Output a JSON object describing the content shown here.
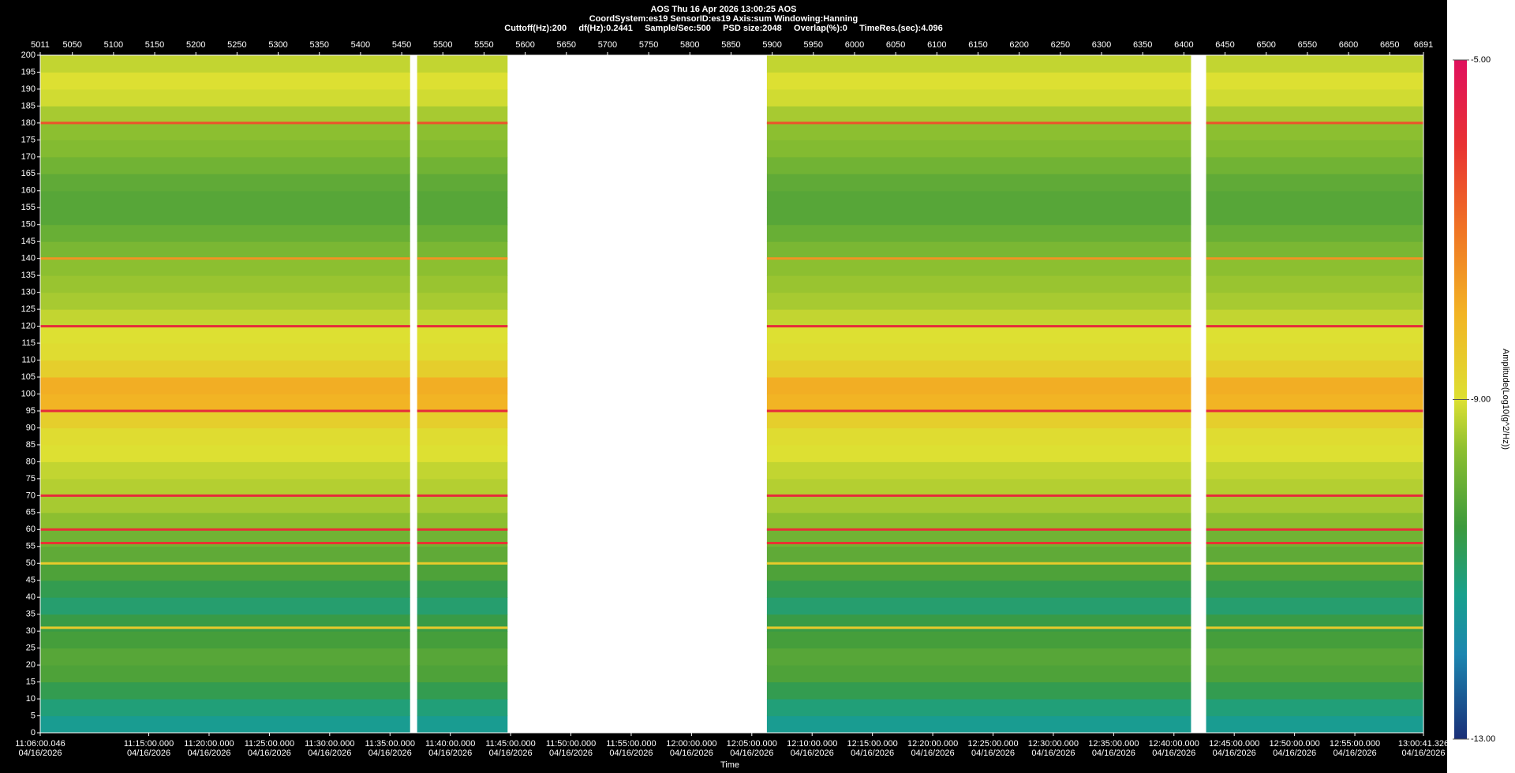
{
  "chart_data": {
    "type": "spectrogram",
    "title": "AOS  Thu 16 Apr 2026 13:00:25  AOS",
    "subtitle": "CoordSystem:es19   SensorID:es19   Axis:sum   Windowing:Hanning",
    "parameters": "Cuttoff(Hz):200     df(Hz):0.2441     Sample/Sec:500     PSD size:2048     Overlap(%):0     TimeRes.(sec):4.096",
    "x_label": "Time",
    "colorbar_label": "Amplitude(Log10(g^2/Hz))",
    "xlim": [
      "11:06:00.046",
      "13:00:41.326"
    ],
    "xticks": [
      {
        "time": "11:06:00.046",
        "date": "04/16/2026"
      },
      {
        "time": "11:15:00.000",
        "date": "04/16/2026"
      },
      {
        "time": "11:20:00.000",
        "date": "04/16/2026"
      },
      {
        "time": "11:25:00.000",
        "date": "04/16/2026"
      },
      {
        "time": "11:30:00.000",
        "date": "04/16/2026"
      },
      {
        "time": "11:35:00.000",
        "date": "04/16/2026"
      },
      {
        "time": "11:40:00.000",
        "date": "04/16/2026"
      },
      {
        "time": "11:45:00.000",
        "date": "04/16/2026"
      },
      {
        "time": "11:50:00.000",
        "date": "04/16/2026"
      },
      {
        "time": "11:55:00.000",
        "date": "04/16/2026"
      },
      {
        "time": "12:00:00.000",
        "date": "04/16/2026"
      },
      {
        "time": "12:05:00.000",
        "date": "04/16/2026"
      },
      {
        "time": "12:10:00.000",
        "date": "04/16/2026"
      },
      {
        "time": "12:15:00.000",
        "date": "04/16/2026"
      },
      {
        "time": "12:20:00.000",
        "date": "04/16/2026"
      },
      {
        "time": "12:25:00.000",
        "date": "04/16/2026"
      },
      {
        "time": "12:30:00.000",
        "date": "04/16/2026"
      },
      {
        "time": "12:35:00.000",
        "date": "04/16/2026"
      },
      {
        "time": "12:40:00.000",
        "date": "04/16/2026"
      },
      {
        "time": "12:45:00.000",
        "date": "04/16/2026"
      },
      {
        "time": "12:50:00.000",
        "date": "04/16/2026"
      },
      {
        "time": "12:55:00.000",
        "date": "04/16/2026"
      },
      {
        "time": "13:00:41.326",
        "date": "04/16/2026"
      }
    ],
    "x2lim": [
      5011,
      6691
    ],
    "x2ticks": [
      5011,
      5050,
      5100,
      5150,
      5200,
      5250,
      5300,
      5350,
      5400,
      5450,
      5500,
      5550,
      5600,
      5650,
      5700,
      5750,
      5800,
      5850,
      5900,
      5950,
      6000,
      6050,
      6100,
      6150,
      6200,
      6250,
      6300,
      6350,
      6400,
      6450,
      6500,
      6550,
      6600,
      6650,
      6691
    ],
    "ylim": [
      0,
      200
    ],
    "yticks": [
      0,
      5,
      10,
      15,
      20,
      25,
      30,
      35,
      40,
      45,
      50,
      55,
      60,
      65,
      70,
      75,
      80,
      85,
      90,
      95,
      100,
      105,
      110,
      115,
      120,
      125,
      130,
      135,
      140,
      145,
      150,
      155,
      160,
      165,
      170,
      175,
      180,
      185,
      190,
      195,
      200
    ],
    "segments": [
      [
        "11:06:00.046",
        "11:36:40"
      ],
      [
        "11:37:15",
        "11:44:45"
      ],
      [
        "12:06:15",
        "12:41:25"
      ],
      [
        "12:42:40",
        "13:00:41.326"
      ]
    ],
    "freq_bins": [
      0,
      5,
      10,
      15,
      20,
      25,
      30,
      35,
      40,
      45,
      50,
      55,
      60,
      65,
      70,
      75,
      80,
      85,
      90,
      95,
      100,
      105,
      110,
      115,
      120,
      125,
      130,
      135,
      140,
      145,
      150,
      155,
      160,
      165,
      170,
      175,
      180,
      185,
      190,
      195,
      200
    ],
    "amplitude": [
      -11.4,
      -11.1,
      -10.7,
      -10.3,
      -10.2,
      -10.4,
      -10.6,
      -11.0,
      -10.7,
      -10.3,
      -10.1,
      -9.9,
      -9.6,
      -9.4,
      -9.3,
      -9.2,
      -9.0,
      -8.9,
      -8.6,
      -8.0,
      -7.9,
      -8.6,
      -8.9,
      -9.0,
      -9.2,
      -9.4,
      -9.5,
      -9.6,
      -9.8,
      -10.0,
      -10.2,
      -10.2,
      -10.1,
      -9.9,
      -9.7,
      -9.6,
      -9.4,
      -9.1,
      -9.0,
      -9.2
    ],
    "lines": [
      {
        "freq": 180,
        "amp": -6.5
      },
      {
        "freq": 140,
        "amp": -7.5
      },
      {
        "freq": 120,
        "amp": -5.8
      },
      {
        "freq": 95,
        "amp": -5.8
      },
      {
        "freq": 70,
        "amp": -5.8
      },
      {
        "freq": 60,
        "amp": -5.9
      },
      {
        "freq": 56,
        "amp": -6.0
      },
      {
        "freq": 50,
        "amp": -8.5
      },
      {
        "freq": 31,
        "amp": -8.5
      }
    ],
    "clim": [
      -13,
      -5
    ],
    "cticks": [
      {
        "value": -13,
        "label": "-13.00"
      },
      {
        "value": -9,
        "label": "-9.00"
      },
      {
        "value": -5,
        "label": "-5.00"
      }
    ],
    "colormap": [
      {
        "value": -13,
        "color": "#1a2f78"
      },
      {
        "value": -12,
        "color": "#1c86b0"
      },
      {
        "value": -11.3,
        "color": "#18a08c"
      },
      {
        "value": -10.5,
        "color": "#3c9a3c"
      },
      {
        "value": -9.6,
        "color": "#8cbf30"
      },
      {
        "value": -9,
        "color": "#dde032"
      },
      {
        "value": -8,
        "color": "#f2b424"
      },
      {
        "value": -7,
        "color": "#f07424"
      },
      {
        "value": -6,
        "color": "#e83232"
      },
      {
        "value": -5,
        "color": "#e0105e"
      }
    ]
  }
}
